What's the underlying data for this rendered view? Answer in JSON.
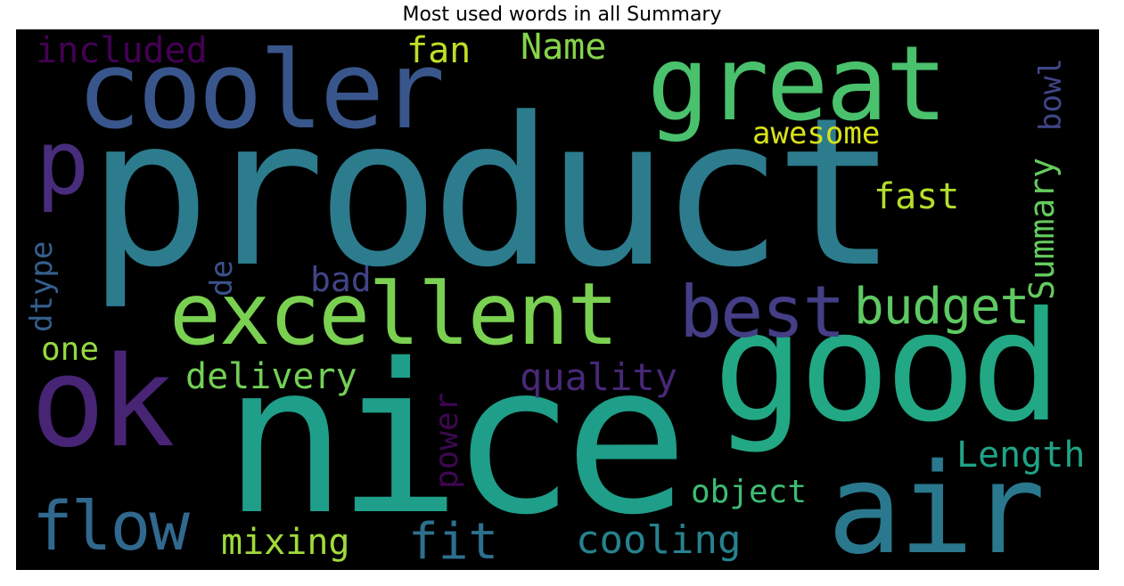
{
  "title": "Most used words in all Summary",
  "words": {
    "product": {
      "text": "product",
      "color": "#2c7c8e"
    },
    "nice": {
      "text": "nice",
      "color": "#1f9e89"
    },
    "good": {
      "text": "good",
      "color": "#22a884"
    },
    "cooler": {
      "text": "cooler",
      "color": "#39568c"
    },
    "great": {
      "text": "great",
      "color": "#4ac16d"
    },
    "excellent": {
      "text": "excellent",
      "color": "#7ad151"
    },
    "air": {
      "text": "air",
      "color": "#2a788e"
    },
    "ok": {
      "text": "ok",
      "color": "#482475"
    },
    "p": {
      "text": "p",
      "color": "#472d7b"
    },
    "best": {
      "text": "best",
      "color": "#433e85"
    },
    "flow": {
      "text": "flow",
      "color": "#31688e"
    },
    "budget": {
      "text": "budget",
      "color": "#5ec962"
    },
    "fit": {
      "text": "fit",
      "color": "#2d708e"
    },
    "cooling": {
      "text": "cooling",
      "color": "#26828e"
    },
    "mixing": {
      "text": "mixing",
      "color": "#a0da39"
    },
    "delivery": {
      "text": "delivery",
      "color": "#73d056"
    },
    "quality": {
      "text": "quality",
      "color": "#482878"
    },
    "Length": {
      "text": "Length",
      "color": "#20a386"
    },
    "object": {
      "text": "object",
      "color": "#3dbc74"
    },
    "awesome": {
      "text": "awesome",
      "color": "#d8e219"
    },
    "fast": {
      "text": "fast",
      "color": "#b5de2b"
    },
    "included": {
      "text": "included",
      "color": "#440154"
    },
    "fan": {
      "text": "fan",
      "color": "#bddf26"
    },
    "Name": {
      "text": "Name",
      "color": "#86d549"
    },
    "one": {
      "text": "one",
      "color": "#95d840"
    },
    "bad": {
      "text": "bad",
      "color": "#414487"
    },
    "de": {
      "text": "de",
      "color": "#3b528b"
    },
    "dtype": {
      "text": "dtype",
      "color": "#355f8d"
    },
    "Summary": {
      "text": "Summary",
      "color": "#65cb5e"
    },
    "bowl": {
      "text": "bowl",
      "color": "#404688"
    },
    "power": {
      "text": "power",
      "color": "#3e0751"
    }
  }
}
